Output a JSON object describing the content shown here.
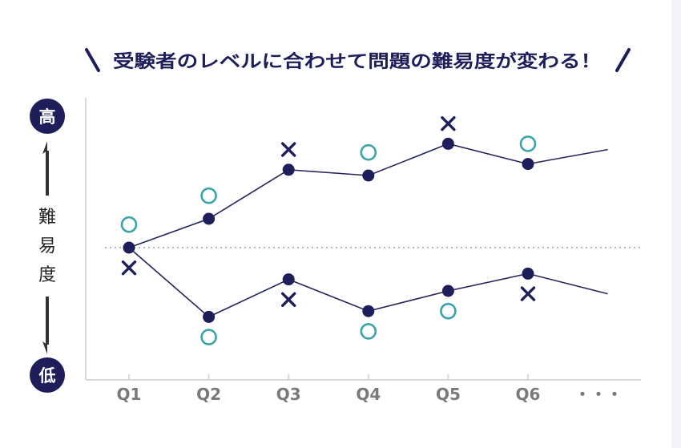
{
  "heading": "受験者のレベルに合わせて問題の難易度が変わる！",
  "y_axis": {
    "high_label": "高",
    "low_label": "低",
    "title_chars": [
      "難",
      "易",
      "度"
    ]
  },
  "colors": {
    "navy": "#1e1e5a",
    "teal": "#3aa4a8",
    "axis": "#d9d9d9",
    "tick_text": "#7a7a7a"
  },
  "chart_data": {
    "type": "line",
    "categories": [
      "Q1",
      "Q2",
      "Q3",
      "Q4",
      "Q5",
      "Q6"
    ],
    "continuation_label": "・・・",
    "start_level": 0,
    "ylim": [
      -5,
      5
    ],
    "grid": false,
    "series": [
      {
        "path": "upper",
        "line_values": [
          0,
          1,
          2.7,
          2.5,
          3.6,
          2.9,
          3.4
        ],
        "answers": [
          {
            "q": "Q1",
            "mark": "circle",
            "value": 0.8
          },
          {
            "q": "Q2",
            "mark": "circle",
            "value": 1.8
          },
          {
            "q": "Q3",
            "mark": "cross",
            "value": 3.4
          },
          {
            "q": "Q4",
            "mark": "circle",
            "value": 3.3
          },
          {
            "q": "Q5",
            "mark": "cross",
            "value": 4.3
          },
          {
            "q": "Q6",
            "mark": "circle",
            "value": 3.6
          }
        ]
      },
      {
        "path": "lower",
        "line_values": [
          0,
          -2.4,
          -1.1,
          -2.2,
          -1.5,
          -0.9,
          -1.6
        ],
        "answers": [
          {
            "q": "Q1",
            "mark": "cross",
            "value": -0.7
          },
          {
            "q": "Q2",
            "mark": "circle",
            "value": -3.1
          },
          {
            "q": "Q3",
            "mark": "cross",
            "value": -1.8
          },
          {
            "q": "Q4",
            "mark": "circle",
            "value": -2.9
          },
          {
            "q": "Q5",
            "mark": "circle",
            "value": -2.2
          },
          {
            "q": "Q6",
            "mark": "cross",
            "value": -1.6
          }
        ]
      }
    ]
  }
}
